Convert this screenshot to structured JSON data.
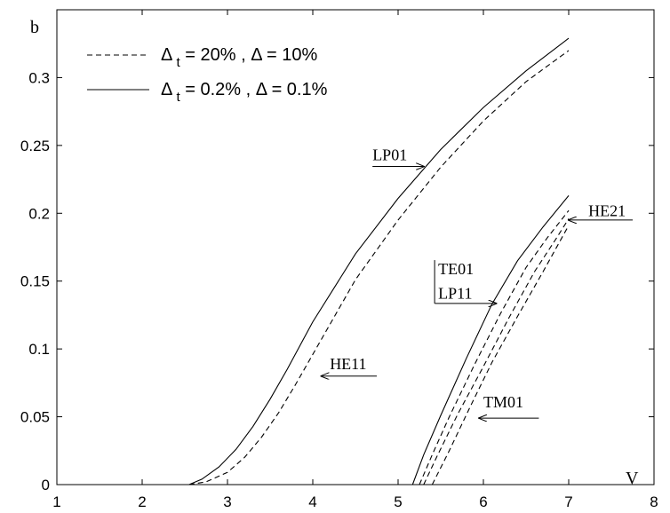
{
  "chart_data": {
    "type": "line",
    "xlabel": "V",
    "ylabel": "b",
    "xlim": [
      1,
      8
    ],
    "ylim": [
      0,
      0.35
    ],
    "xticks": [
      "1",
      "2",
      "3",
      "4",
      "5",
      "6",
      "7",
      "8"
    ],
    "yticks": [
      "0",
      "0.05",
      "0.1",
      "0.15",
      "0.2",
      "0.25",
      "0.3"
    ],
    "xtick_values": [
      1,
      2,
      3,
      4,
      5,
      6,
      7,
      8
    ],
    "ytick_values": [
      0,
      0.05,
      0.1,
      0.15,
      0.2,
      0.25,
      0.3
    ],
    "grid": false,
    "legend_position": "top-left",
    "legend": [
      {
        "style": "dashed",
        "pre": "Δ",
        "sub": "t",
        "post": " = 20% , Δ = 10%"
      },
      {
        "style": "solid",
        "pre": "Δ",
        "sub": "t",
        "post": " = 0.2% , Δ = 0.1%"
      }
    ],
    "series": [
      {
        "style": "solid",
        "x": [
          2.55,
          2.7,
          2.9,
          3.1,
          3.3,
          3.5,
          3.7,
          4.0,
          4.5,
          5.0,
          5.5,
          6.0,
          6.5,
          7.0
        ],
        "y": [
          0,
          0.004,
          0.013,
          0.026,
          0.043,
          0.063,
          0.085,
          0.12,
          0.17,
          0.211,
          0.247,
          0.278,
          0.305,
          0.329
        ]
      },
      {
        "style": "dashed",
        "x": [
          2.55,
          2.75,
          3.0,
          3.2,
          3.4,
          3.6,
          3.8,
          4.0,
          4.5,
          5.0,
          5.5,
          6.0,
          6.5,
          7.0
        ],
        "y": [
          0,
          0.002,
          0.009,
          0.02,
          0.035,
          0.053,
          0.074,
          0.096,
          0.151,
          0.195,
          0.234,
          0.268,
          0.297,
          0.32
        ]
      },
      {
        "style": "solid",
        "x": [
          5.17,
          5.3,
          5.5,
          5.8,
          6.1,
          6.4,
          6.7,
          7.0
        ],
        "y": [
          0,
          0.022,
          0.051,
          0.093,
          0.133,
          0.165,
          0.19,
          0.213
        ]
      },
      {
        "style": "dashed",
        "x": [
          5.25,
          5.4,
          5.6,
          5.9,
          6.2,
          6.5,
          6.75,
          7.0
        ],
        "y": [
          0,
          0.022,
          0.05,
          0.089,
          0.126,
          0.16,
          0.182,
          0.202
        ]
      },
      {
        "style": "dashed",
        "x": [
          5.3,
          5.45,
          5.7,
          6.0,
          6.3,
          6.6,
          6.85,
          7.0
        ],
        "y": [
          0,
          0.02,
          0.052,
          0.087,
          0.123,
          0.157,
          0.181,
          0.196
        ]
      },
      {
        "style": "dashed",
        "x": [
          5.4,
          5.6,
          5.85,
          6.1,
          6.4,
          6.7,
          7.0
        ],
        "y": [
          0,
          0.025,
          0.058,
          0.09,
          0.124,
          0.157,
          0.191
        ]
      }
    ],
    "annotations": [
      {
        "text": "LP01",
        "x": 4.7,
        "y": 0.239,
        "arrow": "right",
        "arrow_from": [
          4.7,
          0.2345
        ],
        "arrow_to": [
          5.3,
          0.2345
        ]
      },
      {
        "text": "HE21",
        "x": 7.23,
        "y": 0.198,
        "arrow": "left",
        "arrow_from": [
          7.75,
          0.195
        ],
        "arrow_to": [
          7.0,
          0.195
        ]
      },
      {
        "text": "TE01",
        "x": 5.47,
        "y": 0.155,
        "bracket": true
      },
      {
        "text": "LP11",
        "x": 5.47,
        "y": 0.137,
        "arrow": "right",
        "arrow_from": [
          5.43,
          0.1335
        ],
        "arrow_to": [
          6.15,
          0.1335
        ]
      },
      {
        "text": "HE11",
        "x": 4.2,
        "y": 0.085,
        "arrow": "left",
        "arrow_from": [
          4.75,
          0.08
        ],
        "arrow_to": [
          4.1,
          0.08
        ]
      },
      {
        "text": "TM01",
        "x": 6.0,
        "y": 0.057,
        "arrow": "left",
        "arrow_from": [
          6.65,
          0.049
        ],
        "arrow_to": [
          5.95,
          0.049
        ]
      }
    ]
  }
}
